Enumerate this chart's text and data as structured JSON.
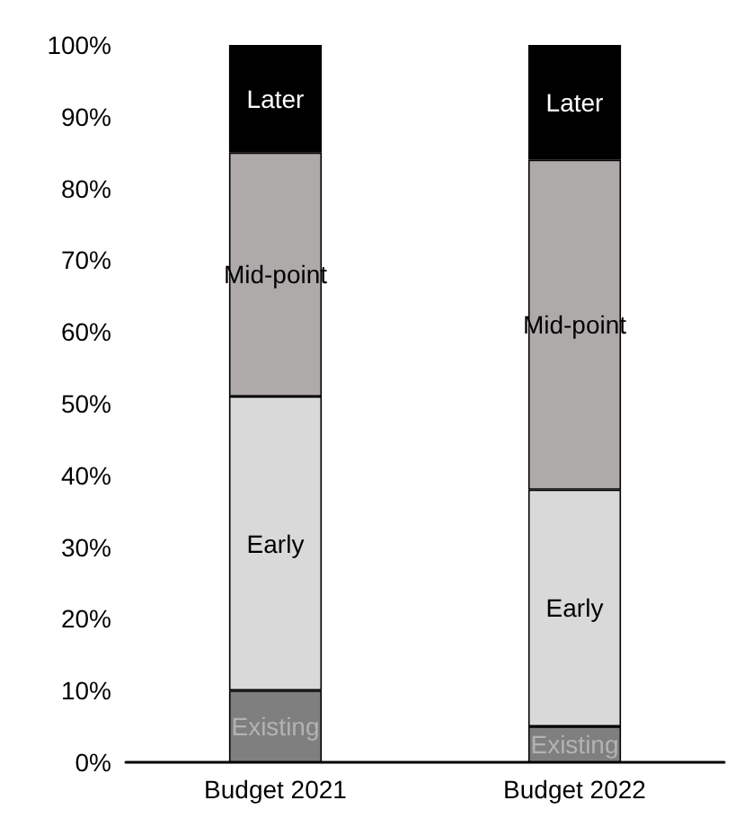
{
  "chart_data": {
    "type": "bar",
    "stacked": true,
    "categories": [
      "Budget 2021",
      "Budget 2022"
    ],
    "series": [
      {
        "name": "Existing",
        "color": "#7f7f7f",
        "values": [
          10,
          5
        ]
      },
      {
        "name": "Early",
        "color": "#d9d9d9",
        "values": [
          41,
          33
        ]
      },
      {
        "name": "Mid-point",
        "color": "#aeaaaa",
        "values": [
          34,
          46
        ]
      },
      {
        "name": "Later",
        "color": "#000000",
        "values": [
          15,
          16
        ]
      }
    ],
    "ylim": [
      0,
      100
    ],
    "yticks": [
      {
        "value": 0,
        "label": "0%"
      },
      {
        "value": 10,
        "label": "10%"
      },
      {
        "value": 20,
        "label": "20%"
      },
      {
        "value": 30,
        "label": "30%"
      },
      {
        "value": 40,
        "label": "40%"
      },
      {
        "value": 50,
        "label": "50%"
      },
      {
        "value": 60,
        "label": "60%"
      },
      {
        "value": 70,
        "label": "70%"
      },
      {
        "value": 80,
        "label": "80%"
      },
      {
        "value": 90,
        "label": "90%"
      },
      {
        "value": 100,
        "label": "100%"
      }
    ],
    "grid": false,
    "legend": false
  }
}
